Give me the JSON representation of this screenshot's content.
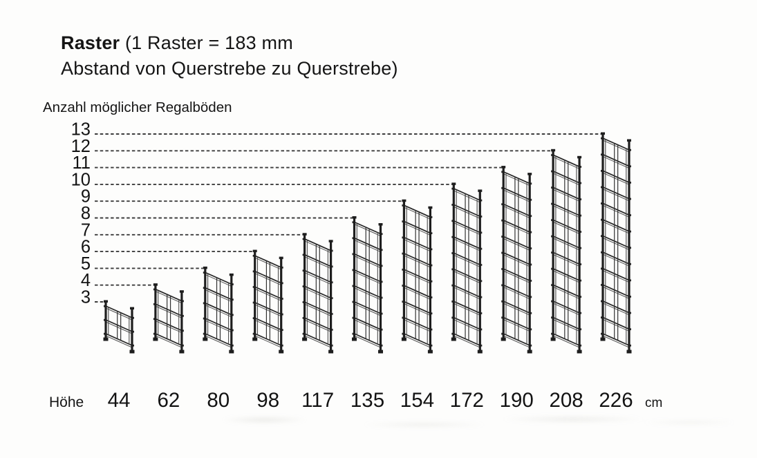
{
  "title": {
    "bold": "Raster",
    "rest": " (1 Raster = 183 mm",
    "line2": "Abstand von Querstrebe zu Querstrebe)"
  },
  "y_axis": {
    "title": "Anzahl möglicher Regalböden",
    "tick_labels": [
      "13",
      "12",
      "11",
      "10",
      "9",
      "8",
      "7",
      "6",
      "5",
      "4",
      "3"
    ]
  },
  "x_axis": {
    "label": "Höhe",
    "unit": "cm",
    "tick_labels": [
      "44",
      "62",
      "80",
      "98",
      "117",
      "135",
      "154",
      "172",
      "190",
      "208",
      "226"
    ]
  },
  "raster_definition_mm": 183,
  "chart_data": {
    "type": "pictogram",
    "title": "Raster (1 Raster = 183 mm Abstand von Querstrebe zu Querstrebe)",
    "ylabel": "Anzahl möglicher Regalböden",
    "xlabel": "Höhe (cm)",
    "x": [
      44,
      62,
      80,
      98,
      117,
      135,
      154,
      172,
      190,
      208,
      226
    ],
    "y": [
      3,
      4,
      5,
      6,
      7,
      8,
      9,
      10,
      11,
      12,
      13
    ],
    "ylim": [
      3,
      13
    ],
    "grid": "dashed horizontal guide lines from each shelf-count value to the top of the matching frame",
    "frames": [
      {
        "height_cm": 44,
        "shelf_positions": 3,
        "raster_sections": 2
      },
      {
        "height_cm": 62,
        "shelf_positions": 4,
        "raster_sections": 3
      },
      {
        "height_cm": 80,
        "shelf_positions": 5,
        "raster_sections": 4
      },
      {
        "height_cm": 98,
        "shelf_positions": 6,
        "raster_sections": 5
      },
      {
        "height_cm": 117,
        "shelf_positions": 7,
        "raster_sections": 6
      },
      {
        "height_cm": 135,
        "shelf_positions": 8,
        "raster_sections": 7
      },
      {
        "height_cm": 154,
        "shelf_positions": 9,
        "raster_sections": 8
      },
      {
        "height_cm": 172,
        "shelf_positions": 10,
        "raster_sections": 9
      },
      {
        "height_cm": 190,
        "shelf_positions": 11,
        "raster_sections": 10
      },
      {
        "height_cm": 208,
        "shelf_positions": 12,
        "raster_sections": 11
      },
      {
        "height_cm": 226,
        "shelf_positions": 13,
        "raster_sections": 12
      }
    ]
  },
  "colors": {
    "background": "#fdfdfc",
    "frame_lines": "#262626",
    "dashed_guides": "#3c3c3c",
    "text": "#131313"
  }
}
